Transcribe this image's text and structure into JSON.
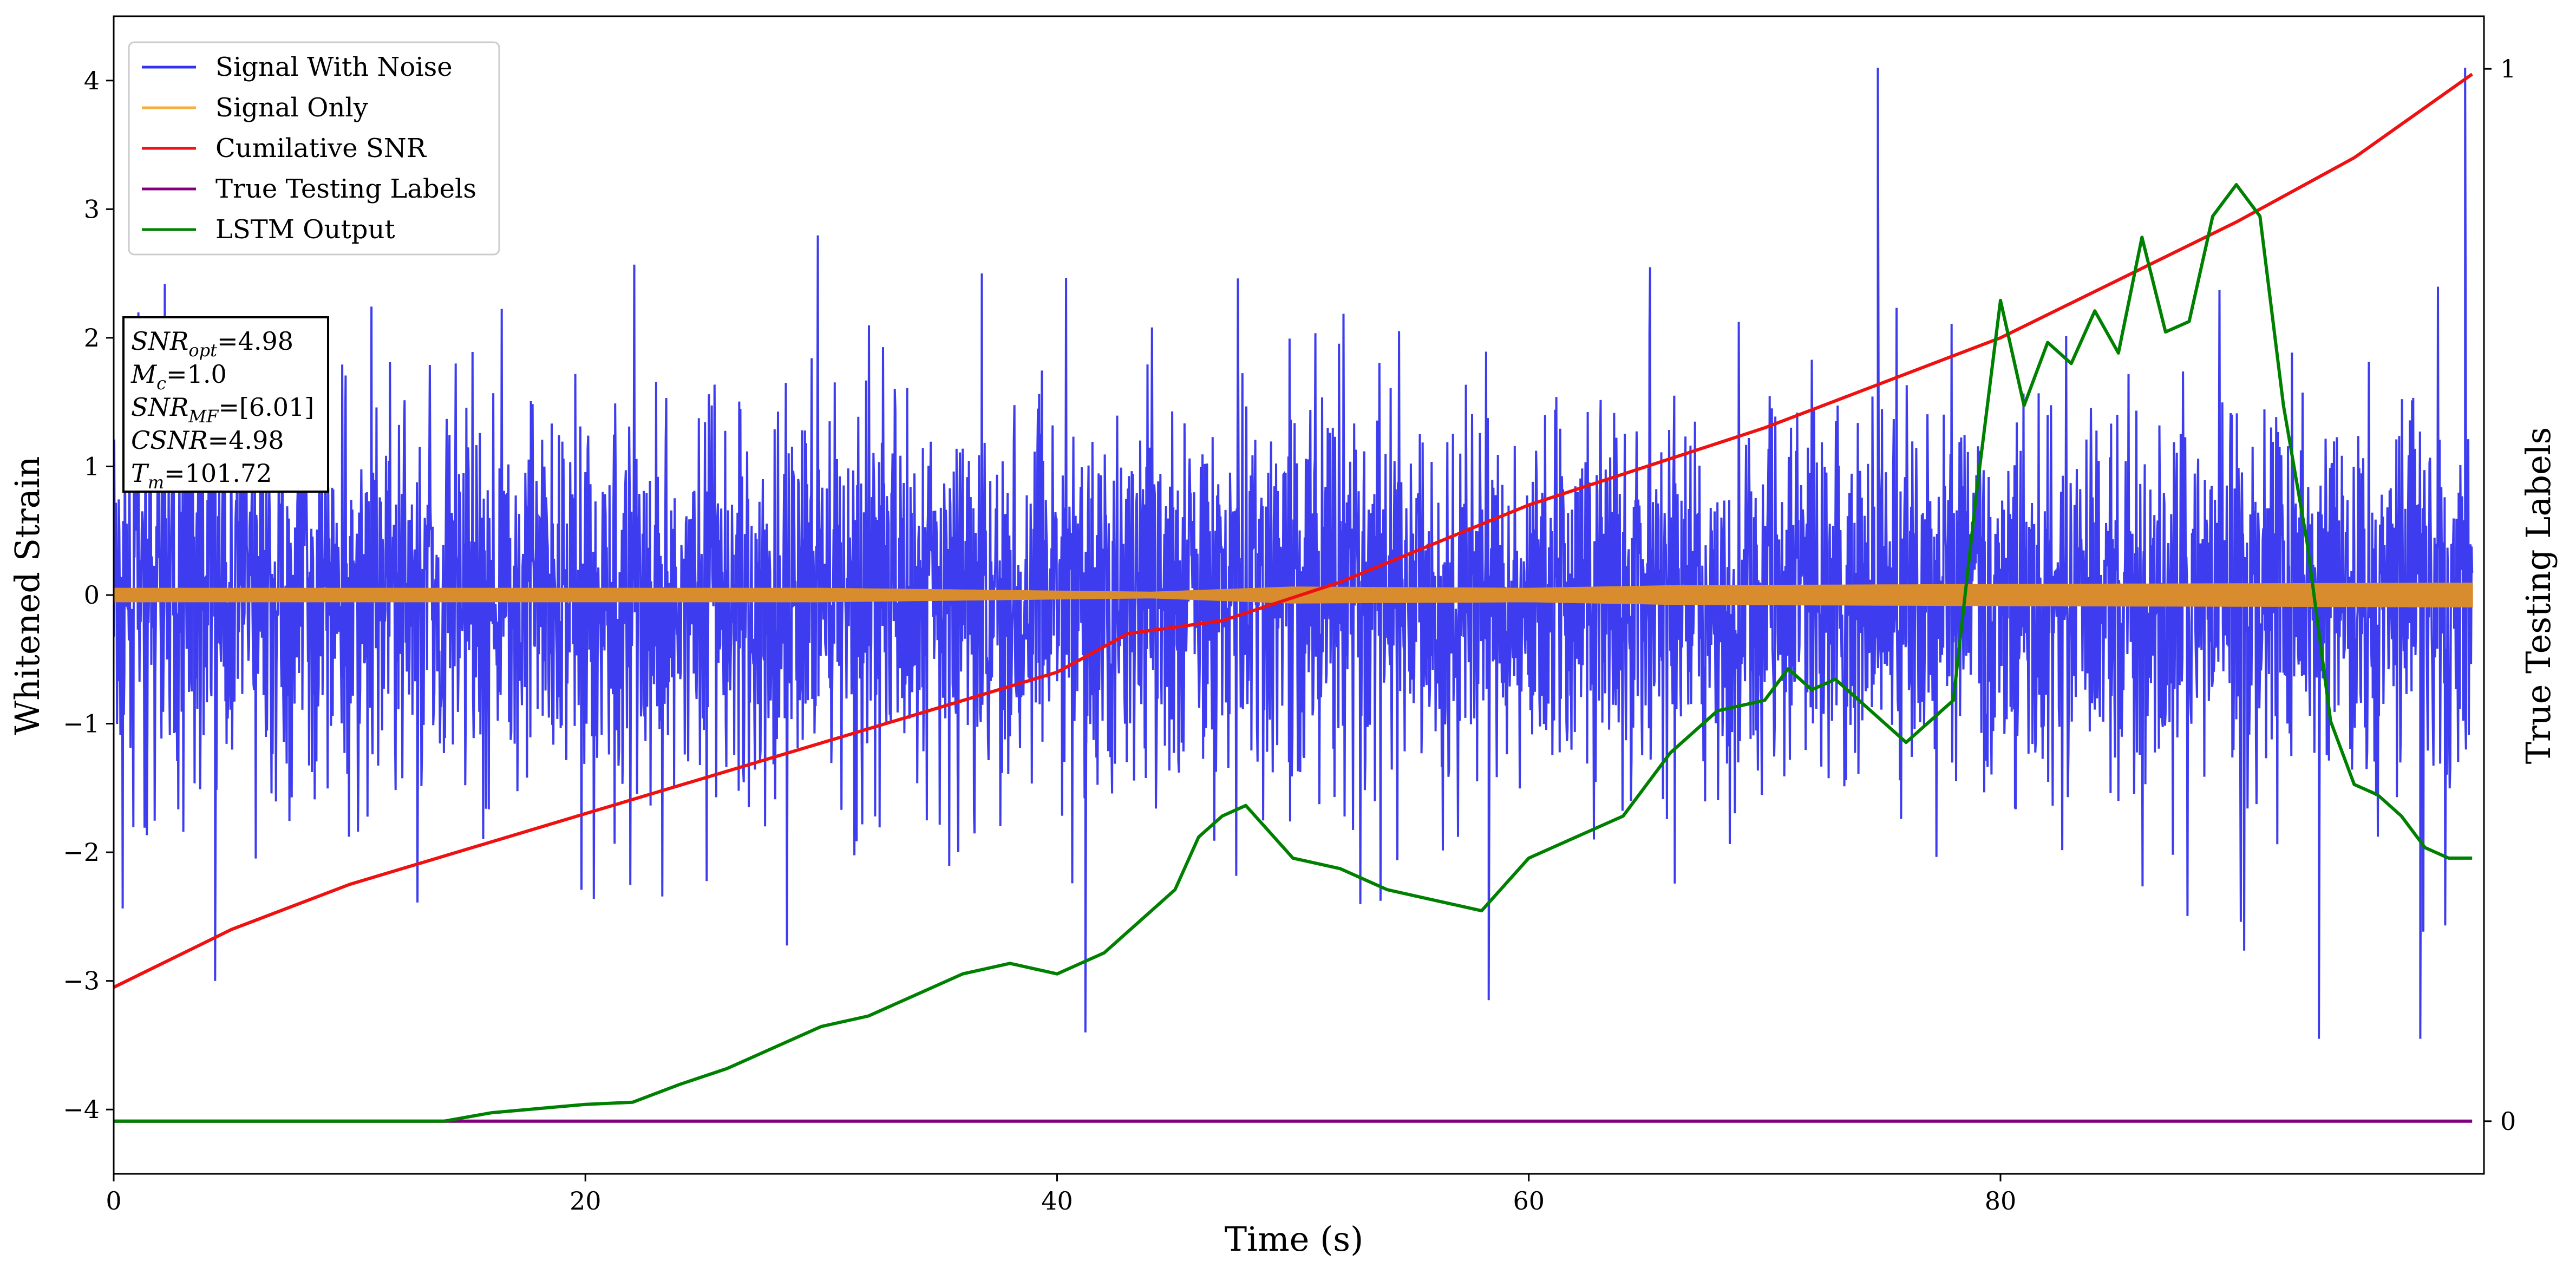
{
  "chart_data": {
    "type": "line",
    "xlabel": "Time (s)",
    "ylabel": "Whitened Strain",
    "y2label": "True Testing Labels",
    "xlim": [
      0,
      100.5
    ],
    "ylim": [
      -4.5,
      4.5
    ],
    "y2lim": [
      -0.05,
      1.05
    ],
    "x_ticks": [
      "0",
      "20",
      "40",
      "60",
      "80"
    ],
    "y_ticks": [
      "−4",
      "−3",
      "−2",
      "−1",
      "0",
      "1",
      "2",
      "3",
      "4"
    ],
    "y2_ticks": [
      "0",
      "1"
    ],
    "grid": false,
    "legend_position": "top-left",
    "info_box": {
      "lines": [
        {
          "base": "SNR",
          "sub": "opt",
          "text": "=4.98"
        },
        {
          "base": "M",
          "sub": "c",
          "text": "=1.0"
        },
        {
          "base": "SNR",
          "sub": "MF",
          "text": "=[6.01]"
        },
        {
          "base": "CSNR",
          "sub": "",
          "text": "=4.98"
        },
        {
          "base": "T",
          "sub": "m",
          "text": "=101.72"
        }
      ]
    },
    "series": [
      {
        "name": "Signal With Noise",
        "color": "#3333ee",
        "axis": "left",
        "band": {
          "low": -1.3,
          "high": 1.0,
          "std": 0.72
        },
        "notable_peaks": [
          [
            74.8,
            4.1
          ],
          [
            99.7,
            4.1
          ],
          [
            4.3,
            -3.0
          ],
          [
            41.2,
            -3.4
          ],
          [
            58.3,
            -3.15
          ],
          [
            93.5,
            -3.45
          ],
          [
            97.8,
            -3.45
          ]
        ]
      },
      {
        "name": "Signal Only",
        "color": "#f5a623",
        "axis": "left",
        "band_amplitude": [
          [
            0,
            0.05
          ],
          [
            30,
            0.05
          ],
          [
            44,
            0.02
          ],
          [
            50,
            0.06
          ],
          [
            60,
            0.05
          ],
          [
            66,
            0.07
          ],
          [
            80,
            0.08
          ],
          [
            100,
            0.09
          ]
        ]
      },
      {
        "name": "Cumilative SNR",
        "color": "#ee1111",
        "axis": "left",
        "x": [
          0,
          5,
          10,
          20,
          30,
          40,
          43,
          47,
          52,
          60,
          70,
          80,
          90,
          95,
          100
        ],
        "y": [
          -3.05,
          -2.6,
          -2.25,
          -1.7,
          -1.15,
          -0.6,
          -0.3,
          -0.2,
          0.1,
          0.7,
          1.3,
          2.0,
          2.9,
          3.4,
          4.05
        ]
      },
      {
        "name": "True Testing Labels",
        "color": "#800080",
        "axis": "right",
        "x": [
          0,
          100
        ],
        "y": [
          0,
          0
        ]
      },
      {
        "name": "LSTM Output",
        "color": "#008000",
        "axis": "right",
        "x": [
          0,
          14,
          16,
          18,
          20,
          22,
          24,
          26,
          28,
          30,
          32,
          34,
          36,
          38,
          40,
          42,
          44,
          45,
          46,
          47,
          48,
          50,
          52,
          54,
          56,
          58,
          60,
          62,
          64,
          66,
          68,
          70,
          71,
          72,
          73,
          74,
          76,
          77,
          78,
          79,
          80,
          81,
          82,
          83,
          84,
          85,
          86,
          87,
          88,
          89,
          90,
          91,
          92,
          93,
          94,
          95,
          96,
          97,
          98,
          99,
          100
        ],
        "y": [
          0.0,
          0.0,
          0.008,
          0.012,
          0.016,
          0.018,
          0.035,
          0.05,
          0.07,
          0.09,
          0.1,
          0.12,
          0.14,
          0.15,
          0.14,
          0.16,
          0.2,
          0.22,
          0.27,
          0.29,
          0.3,
          0.25,
          0.24,
          0.22,
          0.21,
          0.2,
          0.25,
          0.27,
          0.29,
          0.35,
          0.39,
          0.4,
          0.43,
          0.41,
          0.42,
          0.4,
          0.36,
          0.38,
          0.4,
          0.6,
          0.78,
          0.68,
          0.74,
          0.72,
          0.77,
          0.73,
          0.84,
          0.75,
          0.76,
          0.86,
          0.89,
          0.86,
          0.68,
          0.55,
          0.38,
          0.32,
          0.31,
          0.29,
          0.26,
          0.25,
          0.25
        ]
      }
    ]
  }
}
